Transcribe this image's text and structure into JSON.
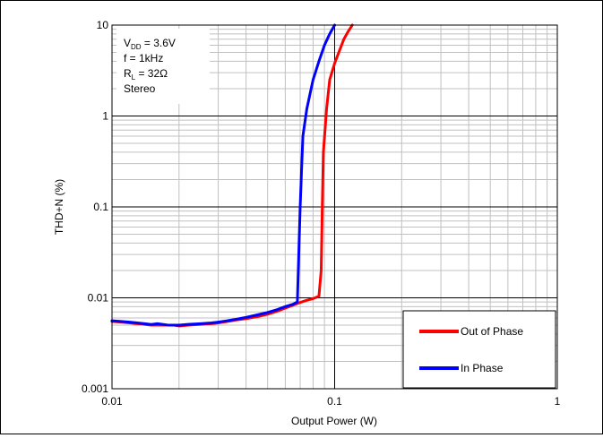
{
  "chart_data": {
    "type": "line",
    "title": "",
    "xlabel": "Output Power (W)",
    "ylabel": "THD+N (%)",
    "x_scale": "log",
    "y_scale": "log",
    "xlim": [
      0.01,
      1
    ],
    "ylim": [
      0.001,
      10
    ],
    "x_ticks": [
      {
        "value": 0.01,
        "label": "0.01"
      },
      {
        "value": 0.1,
        "label": "0.1"
      },
      {
        "value": 1,
        "label": "1"
      }
    ],
    "y_ticks": [
      {
        "value": 0.001,
        "label": "0.001"
      },
      {
        "value": 0.01,
        "label": "0.01"
      },
      {
        "value": 0.1,
        "label": "0.1"
      },
      {
        "value": 1,
        "label": "1"
      },
      {
        "value": 10,
        "label": "10"
      }
    ],
    "grid": true,
    "legend_position": "bottom-right",
    "annotation": {
      "lines": [
        {
          "main": "V",
          "sub": "DD",
          "rest": " = 3.6V"
        },
        {
          "main": "f = 1kHz",
          "sub": "",
          "rest": ""
        },
        {
          "main": "R",
          "sub": "L",
          "rest": " = 32Ω"
        },
        {
          "main": "Stereo",
          "sub": "",
          "rest": ""
        }
      ]
    },
    "series": [
      {
        "name": "Out of Phase",
        "color": "#ff0000",
        "points": [
          [
            0.01,
            0.0055
          ],
          [
            0.011,
            0.0054
          ],
          [
            0.012,
            0.0053
          ],
          [
            0.013,
            0.0052
          ],
          [
            0.014,
            0.0051
          ],
          [
            0.015,
            0.005
          ],
          [
            0.016,
            0.005
          ],
          [
            0.017,
            0.005
          ],
          [
            0.018,
            0.005
          ],
          [
            0.019,
            0.005
          ],
          [
            0.02,
            0.0049
          ],
          [
            0.022,
            0.005
          ],
          [
            0.025,
            0.0051
          ],
          [
            0.028,
            0.0052
          ],
          [
            0.03,
            0.0053
          ],
          [
            0.033,
            0.0055
          ],
          [
            0.036,
            0.0057
          ],
          [
            0.04,
            0.0059
          ],
          [
            0.045,
            0.0062
          ],
          [
            0.05,
            0.0066
          ],
          [
            0.055,
            0.0071
          ],
          [
            0.06,
            0.0077
          ],
          [
            0.065,
            0.0083
          ],
          [
            0.07,
            0.0089
          ],
          [
            0.075,
            0.0094
          ],
          [
            0.08,
            0.0098
          ],
          [
            0.085,
            0.0104
          ],
          [
            0.087,
            0.02
          ],
          [
            0.088,
            0.1
          ],
          [
            0.089,
            0.4
          ],
          [
            0.092,
            1.2
          ],
          [
            0.095,
            2.5
          ],
          [
            0.1,
            3.8
          ],
          [
            0.105,
            5.2
          ],
          [
            0.11,
            7.0
          ],
          [
            0.115,
            8.5
          ],
          [
            0.12,
            10
          ]
        ]
      },
      {
        "name": "In Phase",
        "color": "#0000ff",
        "points": [
          [
            0.01,
            0.0056
          ],
          [
            0.011,
            0.0055
          ],
          [
            0.012,
            0.0054
          ],
          [
            0.013,
            0.0053
          ],
          [
            0.014,
            0.0052
          ],
          [
            0.015,
            0.0051
          ],
          [
            0.016,
            0.0052
          ],
          [
            0.017,
            0.0051
          ],
          [
            0.018,
            0.005
          ],
          [
            0.019,
            0.005
          ],
          [
            0.02,
            0.005
          ],
          [
            0.022,
            0.0051
          ],
          [
            0.025,
            0.0052
          ],
          [
            0.028,
            0.0053
          ],
          [
            0.03,
            0.0054
          ],
          [
            0.033,
            0.0056
          ],
          [
            0.036,
            0.0058
          ],
          [
            0.04,
            0.0061
          ],
          [
            0.045,
            0.0065
          ],
          [
            0.05,
            0.0069
          ],
          [
            0.055,
            0.0074
          ],
          [
            0.06,
            0.008
          ],
          [
            0.065,
            0.0085
          ],
          [
            0.068,
            0.009
          ],
          [
            0.069,
            0.03
          ],
          [
            0.07,
            0.1
          ],
          [
            0.071,
            0.25
          ],
          [
            0.072,
            0.6
          ],
          [
            0.075,
            1.2
          ],
          [
            0.08,
            2.5
          ],
          [
            0.085,
            4.0
          ],
          [
            0.09,
            6.0
          ],
          [
            0.095,
            8.0
          ],
          [
            0.1,
            10
          ]
        ]
      }
    ]
  }
}
